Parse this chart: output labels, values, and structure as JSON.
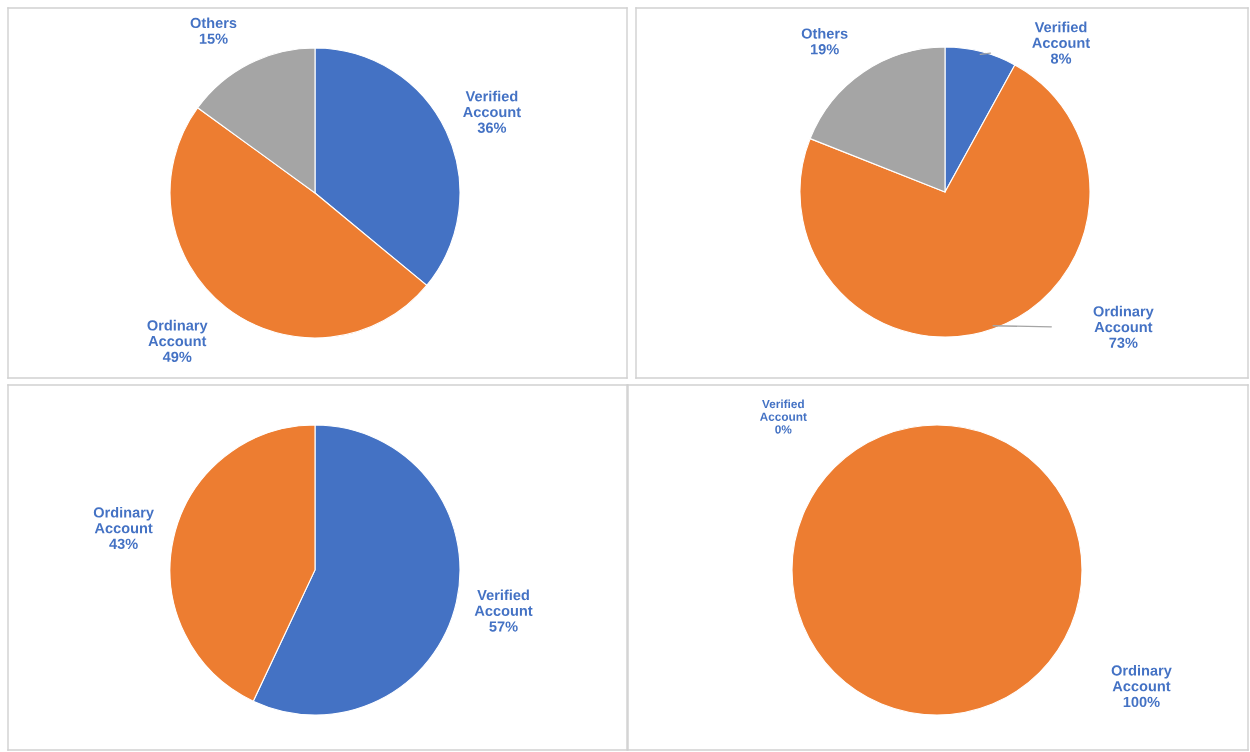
{
  "chart_data": [
    {
      "type": "pie",
      "categories": [
        "Verified Account",
        "Ordinary Account",
        "Others"
      ],
      "values": [
        36,
        49,
        15
      ],
      "colors": [
        "#4472c4",
        "#ed7d31",
        "#a5a5a5"
      ],
      "value_labels": [
        "36%",
        "49%",
        "15%"
      ]
    },
    {
      "type": "pie",
      "categories": [
        "Verified Account",
        "Ordinary Account",
        "Others"
      ],
      "values": [
        8,
        73,
        19
      ],
      "colors": [
        "#4472c4",
        "#ed7d31",
        "#a5a5a5"
      ],
      "value_labels": [
        "8%",
        "73%",
        "19%"
      ]
    },
    {
      "type": "pie",
      "categories": [
        "Verified Account",
        "Ordinary Account"
      ],
      "values": [
        57,
        43
      ],
      "colors": [
        "#4472c4",
        "#ed7d31"
      ],
      "value_labels": [
        "57%",
        "43%"
      ]
    },
    {
      "type": "pie",
      "categories": [
        "Verified Account",
        "Ordinary Account"
      ],
      "values": [
        0,
        100
      ],
      "colors": [
        "#4472c4",
        "#ed7d31"
      ],
      "value_labels": [
        "0%",
        "100%"
      ]
    }
  ]
}
